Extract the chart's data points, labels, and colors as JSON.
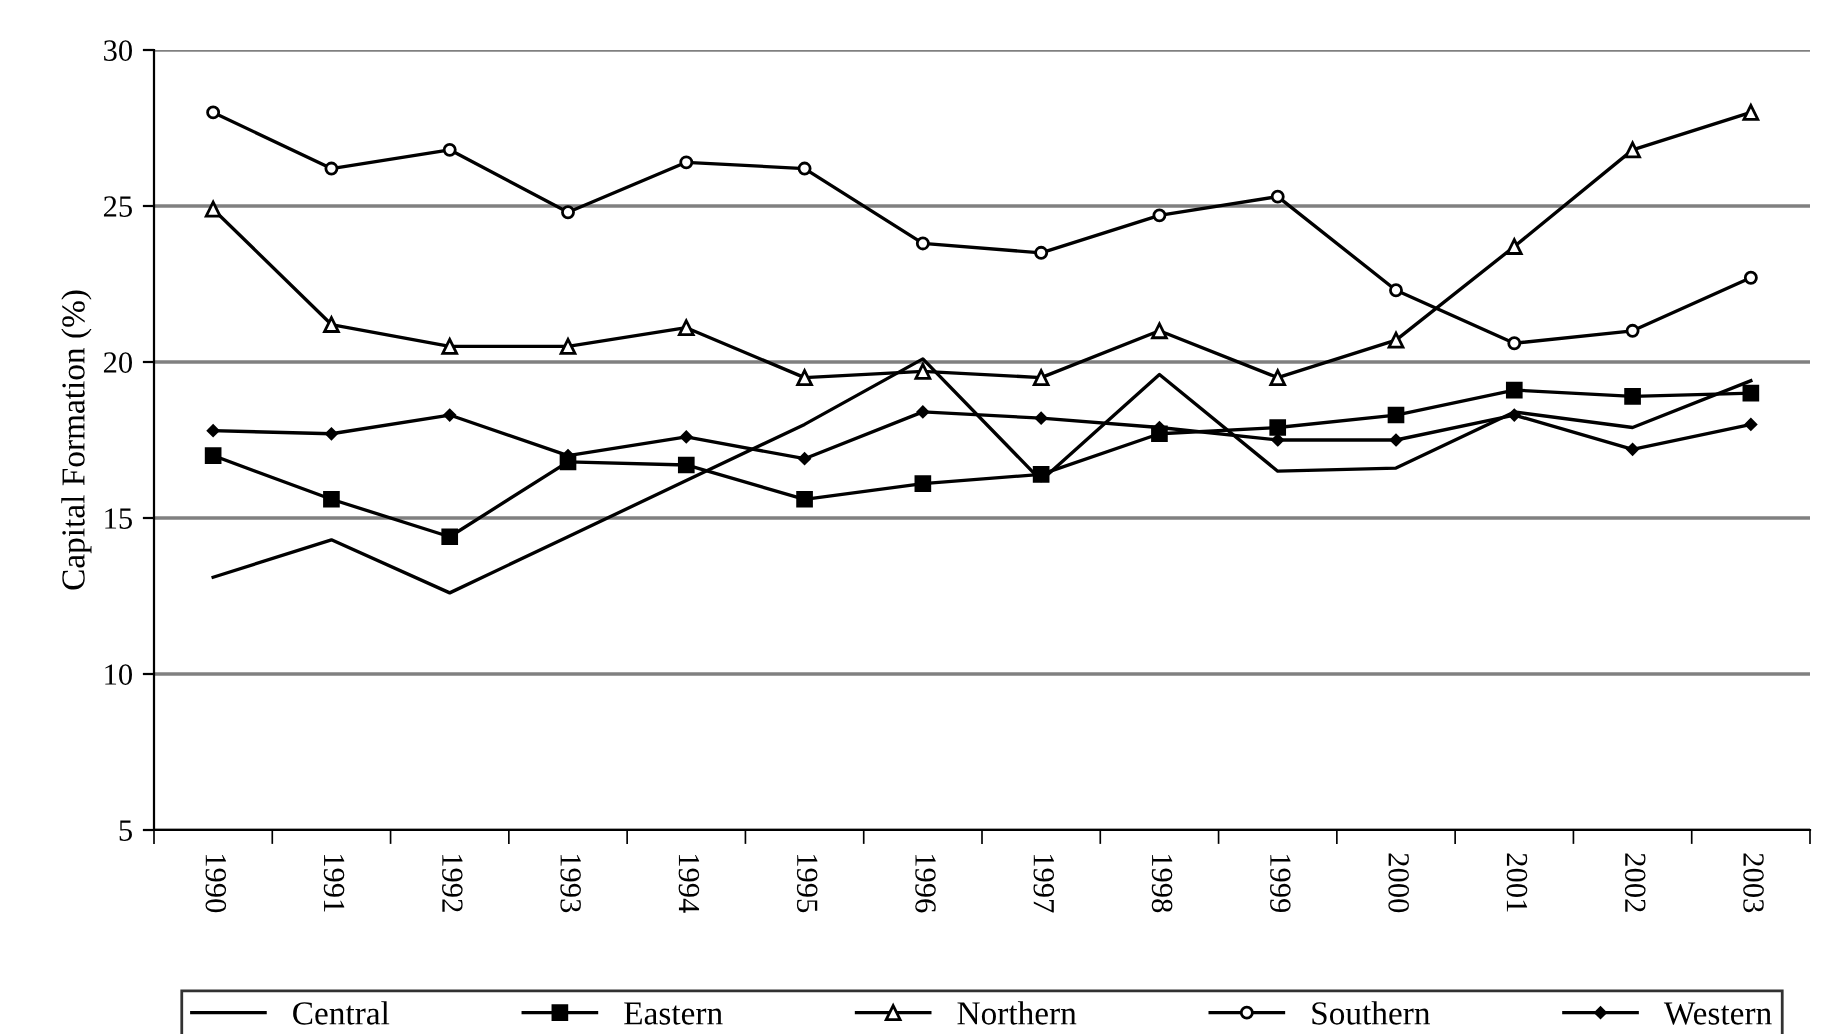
{
  "chart_data": {
    "type": "line",
    "ylabel": "Capital Formation (%)",
    "categories": [
      "1990",
      "1991",
      "1992",
      "1993",
      "1994",
      "1995",
      "1996",
      "1997",
      "1998",
      "1999",
      "2000",
      "2001",
      "2002",
      "2003"
    ],
    "series": [
      {
        "name": "Central",
        "color": "#000000",
        "marker": "none",
        "values": [
          13.1,
          14.3,
          12.6,
          14.4,
          16.2,
          18.0,
          20.1,
          16.2,
          19.6,
          16.5,
          16.6,
          18.4,
          17.9,
          19.4
        ]
      },
      {
        "name": "Eastern",
        "color": "#000000",
        "marker": "square",
        "values": [
          17.0,
          15.6,
          14.4,
          16.8,
          16.7,
          15.6,
          16.1,
          16.4,
          17.7,
          17.9,
          18.3,
          19.1,
          18.9,
          19.0
        ]
      },
      {
        "name": "Northern",
        "color": "#000000",
        "marker": "triangle",
        "values": [
          24.9,
          21.2,
          20.5,
          20.5,
          21.1,
          19.5,
          19.7,
          19.5,
          21.0,
          19.5,
          20.7,
          23.7,
          26.8,
          28.0
        ]
      },
      {
        "name": "Southern",
        "color": "#000000",
        "marker": "circle",
        "values": [
          28.0,
          26.2,
          26.8,
          24.8,
          26.4,
          26.2,
          23.8,
          23.5,
          24.7,
          25.3,
          22.3,
          20.6,
          21.0,
          22.7
        ]
      },
      {
        "name": "Western",
        "color": "#000000",
        "marker": "diamond",
        "values": [
          17.8,
          17.7,
          18.3,
          17.0,
          17.6,
          16.9,
          18.4,
          18.2,
          17.9,
          17.5,
          17.5,
          18.3,
          17.2,
          18.0
        ]
      }
    ],
    "ylim": [
      5,
      30
    ],
    "yticks": [
      5,
      10,
      15,
      20,
      25,
      30
    ],
    "grid": "y",
    "legend": "bottom",
    "line_style": "solid"
  }
}
